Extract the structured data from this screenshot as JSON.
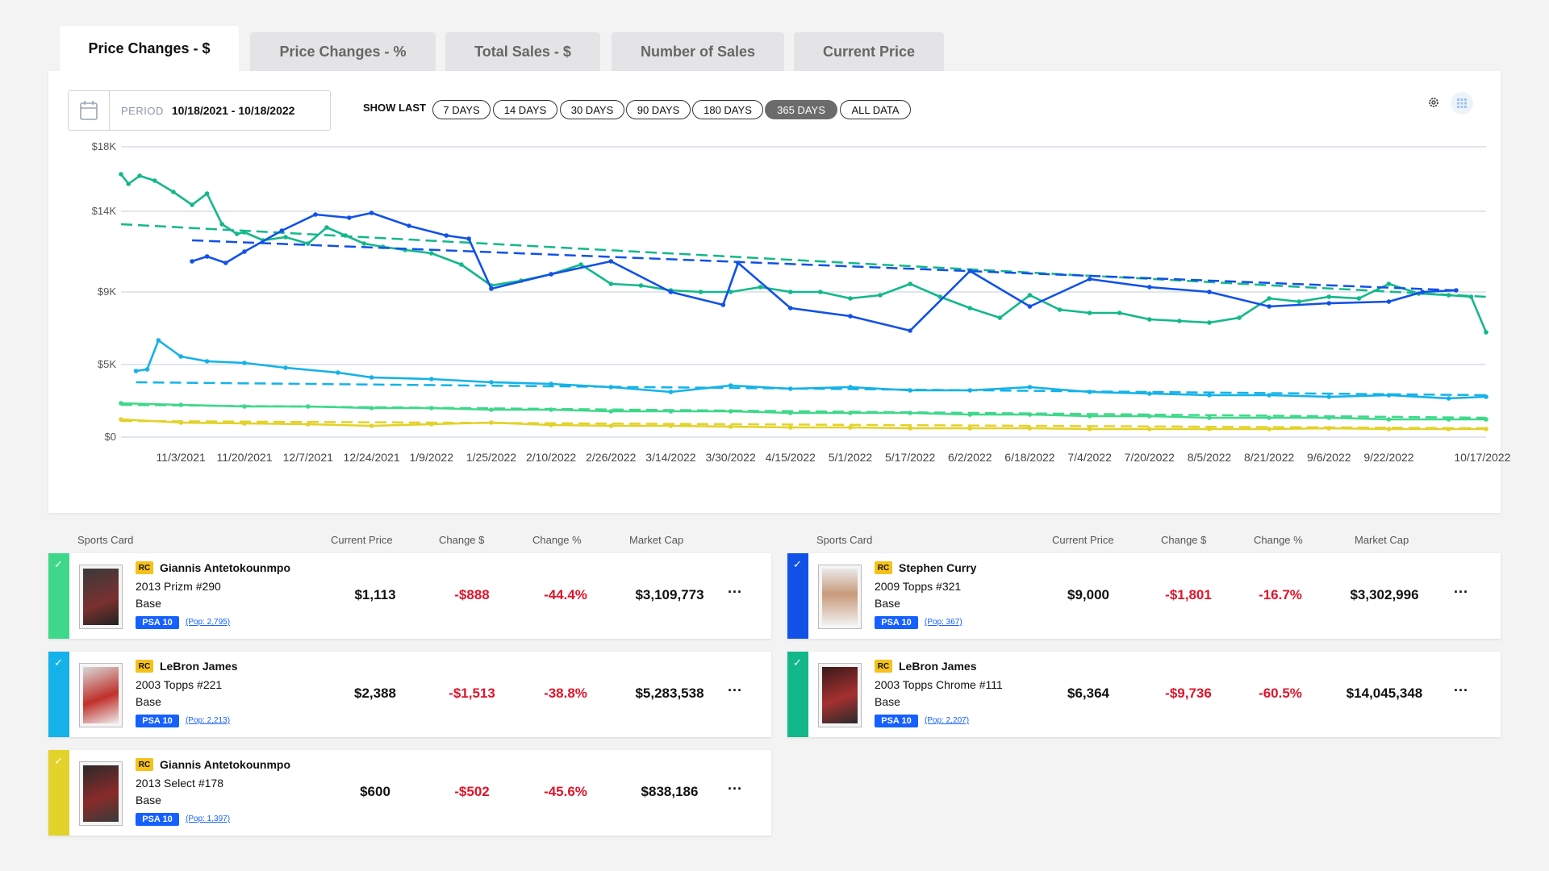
{
  "tabs": [
    {
      "label": "Price Changes - $",
      "active": true
    },
    {
      "label": "Price Changes - %",
      "active": false
    },
    {
      "label": "Total Sales - $",
      "active": false
    },
    {
      "label": "Number of Sales",
      "active": false
    },
    {
      "label": "Current Price",
      "active": false
    }
  ],
  "period": {
    "label": "PERIOD",
    "value": "10/18/2021 - 10/18/2022"
  },
  "show_last": {
    "label": "SHOW LAST",
    "options": [
      "7 DAYS",
      "14 DAYS",
      "30 DAYS",
      "90 DAYS",
      "180 DAYS",
      "365 DAYS",
      "ALL DATA"
    ],
    "selected": "365 DAYS"
  },
  "chart_data": {
    "type": "line",
    "y_ticks": [
      "$18K",
      "$14K",
      "$9K",
      "$5K",
      "$0"
    ],
    "ylim": [
      0,
      18000
    ],
    "x_ticks": [
      "11/3/2021",
      "11/20/2021",
      "12/7/2021",
      "12/24/2021",
      "1/9/2022",
      "1/25/2022",
      "2/10/2022",
      "2/26/2022",
      "3/14/2022",
      "3/30/2022",
      "4/15/2022",
      "5/1/2022",
      "5/17/2022",
      "6/2/2022",
      "6/18/2022",
      "7/4/2022",
      "7/20/2022",
      "8/5/2022",
      "8/21/2022",
      "9/6/2022",
      "9/22/2022",
      "10/17/2022"
    ],
    "grid": true,
    "trendlines": true,
    "series": [
      {
        "color": "#13b88a",
        "x": [
          "10/18/2021",
          "10/20/2021",
          "10/23/2021",
          "10/27/2021",
          "11/1/2021",
          "11/6/2021",
          "11/10/2021",
          "11/14/2021",
          "11/18/2021",
          "11/20/2021",
          "11/25/2021",
          "12/1/2021",
          "12/7/2021",
          "12/12/2021",
          "12/17/2021",
          "12/22/2021",
          "12/27/2021",
          "1/2/2022",
          "1/9/2022",
          "1/17/2022",
          "1/25/2022",
          "2/2/2022",
          "2/10/2022",
          "2/18/2022",
          "2/26/2022",
          "3/6/2022",
          "3/14/2022",
          "3/22/2022",
          "3/30/2022",
          "4/7/2022",
          "4/15/2022",
          "4/23/2022",
          "5/1/2022",
          "5/9/2022",
          "5/17/2022",
          "5/25/2022",
          "6/2/2022",
          "6/10/2022",
          "6/18/2022",
          "6/26/2022",
          "7/4/2022",
          "7/12/2022",
          "7/20/2022",
          "7/28/2022",
          "8/5/2022",
          "8/13/2022",
          "8/21/2022",
          "8/29/2022",
          "9/6/2022",
          "9/14/2022",
          "9/22/2022",
          "9/30/2022",
          "10/8/2022",
          "10/14/2022",
          "10/18/2022"
        ],
        "y": [
          16300,
          15700,
          16200,
          15900,
          15200,
          14400,
          15100,
          13200,
          12600,
          12700,
          12200,
          12400,
          12000,
          13000,
          12500,
          12000,
          11800,
          11600,
          11400,
          10700,
          9400,
          9700,
          10100,
          10700,
          9500,
          9400,
          9100,
          9000,
          9000,
          9300,
          9000,
          9000,
          8600,
          8800,
          9500,
          8700,
          8000,
          7400,
          8800,
          7900,
          7700,
          7700,
          7300,
          7200,
          7100,
          7400,
          8600,
          8400,
          8700,
          8600,
          9500,
          8900,
          8800,
          8700,
          6500
        ],
        "trend": [
          13200,
          8700
        ]
      },
      {
        "color": "#1251e8",
        "x": [
          "11/6/2021",
          "11/10/2021",
          "11/15/2021",
          "11/20/2021",
          "11/30/2021",
          "12/9/2021",
          "12/18/2021",
          "12/24/2021",
          "1/3/2022",
          "1/13/2022",
          "1/19/2022",
          "1/25/2022",
          "2/10/2022",
          "2/26/2022",
          "3/14/2022",
          "3/28/2022",
          "4/1/2022",
          "4/15/2022",
          "5/1/2022",
          "5/17/2022",
          "6/2/2022",
          "6/18/2022",
          "7/4/2022",
          "7/20/2022",
          "8/5/2022",
          "8/21/2022",
          "9/6/2022",
          "9/22/2022",
          "10/1/2022",
          "10/10/2022"
        ],
        "y": [
          10900,
          11200,
          10800,
          11500,
          12800,
          13800,
          13600,
          13900,
          13100,
          12500,
          12300,
          9200,
          10100,
          10900,
          9000,
          8200,
          10800,
          8000,
          7500,
          6600,
          10300,
          8100,
          9800,
          9300,
          9000,
          8100,
          8300,
          8400,
          9000,
          9100
        ],
        "trend": [
          12200,
          9100
        ]
      },
      {
        "color": "#14b2e8",
        "x": [
          "10/22/2021",
          "10/25/2021",
          "10/28/2021",
          "11/3/2021",
          "11/10/2021",
          "11/20/2021",
          "12/1/2021",
          "12/15/2021",
          "12/24/2021",
          "1/9/2022",
          "1/25/2022",
          "2/10/2022",
          "2/26/2022",
          "3/14/2022",
          "3/30/2022",
          "4/15/2022",
          "5/1/2022",
          "5/17/2022",
          "6/2/2022",
          "6/18/2022",
          "7/4/2022",
          "7/20/2022",
          "8/5/2022",
          "8/21/2022",
          "9/6/2022",
          "9/22/2022",
          "10/8/2022",
          "10/18/2022"
        ],
        "y": [
          4100,
          4200,
          6000,
          5000,
          4700,
          4600,
          4300,
          4000,
          3700,
          3600,
          3400,
          3300,
          3100,
          2800,
          3200,
          3000,
          3100,
          2900,
          2900,
          3100,
          2800,
          2700,
          2600,
          2600,
          2500,
          2600,
          2400,
          2500
        ],
        "trend": [
          3400,
          2600
        ]
      },
      {
        "color": "#3fd88a",
        "x": [
          "10/18/2021",
          "11/3/2021",
          "11/20/2021",
          "12/7/2021",
          "12/24/2021",
          "1/9/2022",
          "1/25/2022",
          "2/10/2022",
          "2/26/2022",
          "3/14/2022",
          "3/30/2022",
          "4/15/2022",
          "5/1/2022",
          "5/17/2022",
          "6/2/2022",
          "6/18/2022",
          "7/4/2022",
          "7/20/2022",
          "8/5/2022",
          "8/21/2022",
          "9/6/2022",
          "9/22/2022",
          "10/8/2022",
          "10/18/2022"
        ],
        "y": [
          2100,
          2000,
          1900,
          1900,
          1800,
          1800,
          1700,
          1700,
          1600,
          1600,
          1600,
          1500,
          1500,
          1500,
          1400,
          1400,
          1300,
          1300,
          1200,
          1200,
          1200,
          1100,
          1100,
          1100
        ],
        "trend": [
          2000,
          1200
        ]
      },
      {
        "color": "#e2d22a",
        "x": [
          "10/18/2021",
          "11/3/2021",
          "11/20/2021",
          "12/7/2021",
          "12/24/2021",
          "1/9/2022",
          "1/25/2022",
          "2/10/2022",
          "2/26/2022",
          "3/14/2022",
          "3/30/2022",
          "4/15/2022",
          "5/1/2022",
          "5/17/2022",
          "6/2/2022",
          "6/18/2022",
          "7/4/2022",
          "7/20/2022",
          "8/5/2022",
          "8/21/2022",
          "9/6/2022",
          "9/22/2022",
          "10/8/2022",
          "10/18/2022"
        ],
        "y": [
          1100,
          900,
          850,
          800,
          700,
          800,
          900,
          750,
          700,
          700,
          650,
          600,
          600,
          550,
          550,
          550,
          500,
          500,
          500,
          500,
          550,
          500,
          500,
          500
        ],
        "trend": [
          1000,
          550
        ]
      }
    ]
  },
  "columns": {
    "card": "Sports Card",
    "price": "Current Price",
    "change_usd": "Change $",
    "change_pct": "Change %",
    "market_cap": "Market Cap"
  },
  "cards": [
    {
      "name": "Giannis Antetokounmpo",
      "set": "2013 Prizm #290",
      "variant": "Base",
      "rc": "RC",
      "grade": "PSA 10",
      "pop": "(Pop: 2,795)",
      "price": "$1,113",
      "change_usd": "-$888",
      "change_pct": "-44.4%",
      "market_cap": "$3,109,773",
      "color": "#3fd88a",
      "more": "···"
    },
    {
      "name": "Stephen Curry",
      "set": "2009 Topps #321",
      "variant": "Base",
      "rc": "RC",
      "grade": "PSA 10",
      "pop": "(Pop: 367)",
      "price": "$9,000",
      "change_usd": "-$1,801",
      "change_pct": "-16.7%",
      "market_cap": "$3,302,996",
      "color": "#1251e8",
      "more": "···"
    },
    {
      "name": "LeBron James",
      "set": "2003 Topps #221",
      "variant": "Base",
      "rc": "RC",
      "grade": "PSA 10",
      "pop": "(Pop: 2,213)",
      "price": "$2,388",
      "change_usd": "-$1,513",
      "change_pct": "-38.8%",
      "market_cap": "$5,283,538",
      "color": "#14b2e8",
      "more": "···"
    },
    {
      "name": "LeBron James",
      "set": "2003 Topps Chrome #111",
      "variant": "Base",
      "rc": "RC",
      "grade": "PSA 10",
      "pop": "(Pop: 2,207)",
      "price": "$6,364",
      "change_usd": "-$9,736",
      "change_pct": "-60.5%",
      "market_cap": "$14,045,348",
      "color": "#13b88a",
      "more": "···"
    },
    {
      "name": "Giannis Antetokounmpo",
      "set": "2013 Select #178",
      "variant": "Base",
      "rc": "RC",
      "grade": "PSA 10",
      "pop": "(Pop: 1,397)",
      "price": "$600",
      "change_usd": "-$502",
      "change_pct": "-45.6%",
      "market_cap": "$838,186",
      "color": "#e2d22a",
      "more": "···"
    }
  ]
}
